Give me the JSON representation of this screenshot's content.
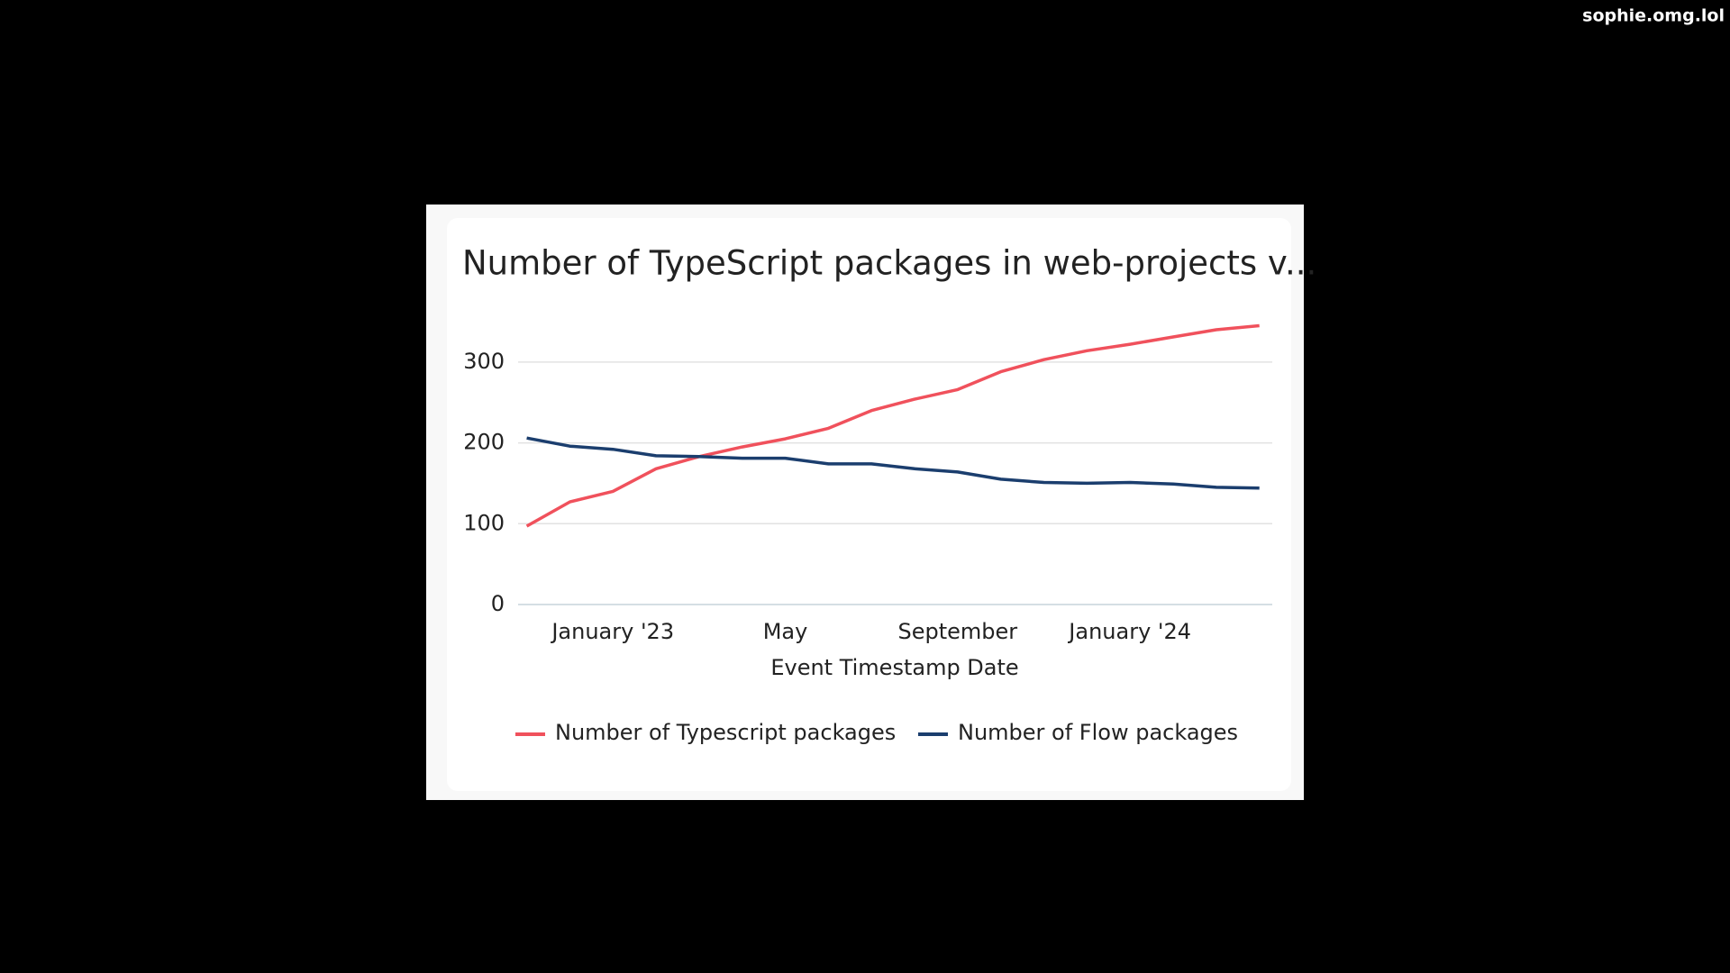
{
  "watermark": "sophie.omg.lol",
  "chart_data": {
    "type": "line",
    "title": "Number of TypeScript packages in web-projects v...",
    "x_label": "Event Timestamp Date",
    "x": [
      "2022-11",
      "2022-12",
      "2023-01",
      "2023-02",
      "2023-03",
      "2023-04",
      "2023-05",
      "2023-06",
      "2023-07",
      "2023-08",
      "2023-09",
      "2023-10",
      "2023-11",
      "2023-12",
      "2024-01",
      "2024-02",
      "2024-03",
      "2024-04"
    ],
    "series": [
      {
        "name": "Number of Typescript packages",
        "color": "#f0515c",
        "values": [
          97,
          127,
          140,
          168,
          183,
          195,
          205,
          218,
          240,
          254,
          266,
          288,
          303,
          314,
          322,
          331,
          340,
          345
        ]
      },
      {
        "name": "Number of Flow packages",
        "color": "#1b3e6e",
        "values": [
          206,
          196,
          192,
          184,
          183,
          181,
          181,
          174,
          174,
          168,
          164,
          155,
          151,
          150,
          151,
          149,
          145,
          144
        ]
      }
    ],
    "xticks": [
      {
        "value": "2023-01",
        "label": "January '23"
      },
      {
        "value": "2023-05",
        "label": "May"
      },
      {
        "value": "2023-09",
        "label": "September"
      },
      {
        "value": "2024-01",
        "label": "January '24"
      }
    ],
    "ylim": [
      0,
      350
    ],
    "yticks": [
      0,
      100,
      200,
      300
    ],
    "grid": true,
    "legend": "bottom"
  }
}
